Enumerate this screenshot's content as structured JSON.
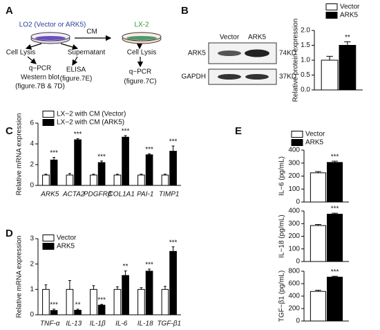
{
  "panel_labels": [
    "A",
    "B",
    "C",
    "D",
    "E"
  ],
  "diagram": {
    "source": "LO2 (Vector or ARK5)",
    "transfer": "CM",
    "target": "LX-2",
    "source_left": "Cell Lysis",
    "source_right": "Supernatant",
    "source_left_out": [
      "q−PCR",
      "Western blot",
      "(figure.7B & 7D)"
    ],
    "source_right_out": [
      "ELISA",
      "(figure.7E)"
    ],
    "target_step": "Cell Lysis",
    "target_out": [
      "q−PCR",
      "(figure.7C)"
    ]
  },
  "blot": {
    "columns": [
      "Vector",
      "ARK5"
    ],
    "rows": [
      {
        "name": "ARK5",
        "size": "74KD"
      },
      {
        "name": "GAPDH",
        "size": "37KD"
      }
    ]
  },
  "chart_data": [
    {
      "type": "bar",
      "categories": [
        null
      ],
      "y_label": "Relative protein expression",
      "ylim": [
        0,
        2
      ],
      "yticks": [
        {
          "value": 0,
          "label": "0.0"
        },
        0.5,
        {
          "value": 1,
          "label": "1.0"
        },
        1.5,
        {
          "value": 2,
          "label": "2.0"
        }
      ],
      "series": [
        {
          "name": "Vector",
          "color": "#ffffff",
          "values": [
            1.0
          ],
          "errors": [
            0.13
          ]
        },
        {
          "name": "ARK5",
          "color": "#000000",
          "values": [
            1.5
          ],
          "errors": [
            0.12
          ],
          "significance": [
            "**"
          ]
        }
      ]
    },
    {
      "type": "bar",
      "categories": [
        "ARK5",
        "ACTA2",
        "PDGFRβ",
        "COL1A1",
        "PAI-1",
        "TIMP1"
      ],
      "y_label": "Relative mRNA expression",
      "ylim": [
        0,
        6
      ],
      "yticks": [
        0,
        2,
        4,
        6
      ],
      "series": [
        {
          "name": "LX−2 with CM (Vector)",
          "color": "#ffffff",
          "values": [
            1.0,
            1.0,
            1.0,
            1.0,
            1.0,
            1.0
          ],
          "errors": [
            0.08,
            0.15,
            0.08,
            0.08,
            0.08,
            0.08
          ]
        },
        {
          "name": "LX−2 with CM (ARK5)",
          "color": "#000000",
          "values": [
            2.45,
            4.4,
            2.2,
            4.65,
            2.95,
            3.3
          ],
          "errors": [
            0.25,
            0.1,
            0.15,
            0.15,
            0.1,
            0.5
          ],
          "significance": [
            "***",
            "***",
            "***",
            "***",
            "***",
            "***"
          ]
        }
      ]
    },
    {
      "type": "bar",
      "categories": [
        "TNF-α",
        "IL-13",
        "IL-1β",
        "IL-6",
        "IL-18",
        "TGF-β1"
      ],
      "y_label": "Relative mRNA expression",
      "ylim": [
        0,
        3
      ],
      "yticks": [
        0,
        1,
        2,
        3
      ],
      "series": [
        {
          "name": "Vector",
          "color": "#ffffff",
          "values": [
            1.0,
            1.0,
            1.0,
            1.0,
            1.0,
            1.0
          ],
          "errors": [
            0.18,
            0.35,
            0.15,
            0.1,
            0.07,
            0.12
          ]
        },
        {
          "name": "ARK5",
          "color": "#000000",
          "values": [
            0.17,
            0.18,
            0.38,
            1.55,
            1.72,
            2.5
          ],
          "errors": [
            0.05,
            0.04,
            0.03,
            0.18,
            0.08,
            0.18
          ],
          "significance": [
            "***",
            "**",
            "***",
            "**",
            "***",
            "***"
          ]
        }
      ]
    },
    {
      "type": "bar",
      "categories": [
        null
      ],
      "y_label": "IL−6 (pg/mL)",
      "ylim": [
        0,
        400
      ],
      "yticks": [
        0,
        100,
        200,
        300,
        400
      ],
      "series": [
        {
          "name": "Vector",
          "color": "#ffffff",
          "values": [
            225
          ],
          "errors": [
            10
          ]
        },
        {
          "name": "ARK5",
          "color": "#000000",
          "values": [
            305
          ],
          "errors": [
            10
          ],
          "significance": [
            "***"
          ]
        }
      ]
    },
    {
      "type": "bar",
      "categories": [
        null
      ],
      "y_label": "IL−18 (pg/mL)",
      "ylim": [
        0,
        400
      ],
      "yticks": [
        0,
        100,
        200,
        300,
        400
      ],
      "series": [
        {
          "color": "#ffffff",
          "values": [
            285
          ],
          "errors": [
            8
          ]
        },
        {
          "color": "#000000",
          "values": [
            375
          ],
          "errors": [
            8
          ],
          "significance": [
            "***"
          ]
        }
      ]
    },
    {
      "type": "bar",
      "categories": [
        null
      ],
      "y_label": "TGF−β1 (pg/mL)",
      "ylim": [
        0,
        800
      ],
      "yticks": [
        0,
        200,
        400,
        600,
        800
      ],
      "series": [
        {
          "color": "#ffffff",
          "values": [
            475
          ],
          "errors": [
            20
          ]
        },
        {
          "color": "#000000",
          "values": [
            705
          ],
          "errors": [
            15
          ],
          "significance": [
            "***"
          ]
        }
      ]
    }
  ]
}
